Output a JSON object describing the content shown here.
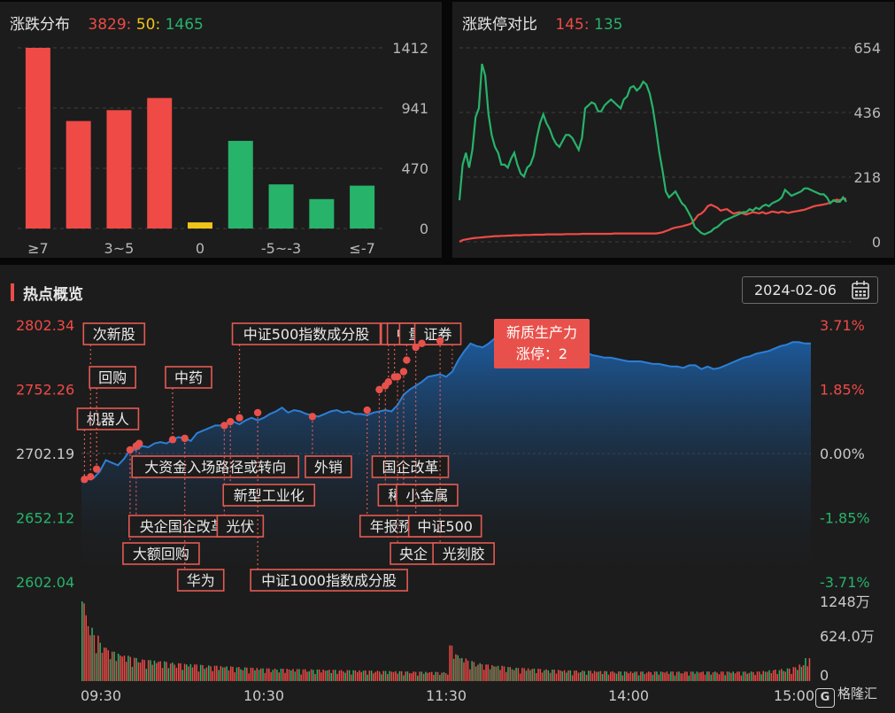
{
  "distribution": {
    "title": "涨跌分布",
    "up_count": "3829",
    "flat_count": "50",
    "down_count": "1465",
    "sep": ":"
  },
  "limit_compare": {
    "title": "涨跌停对比",
    "up_limit": "145",
    "down_limit": "135",
    "sep": ":"
  },
  "hot": {
    "title": "热点概览",
    "date": "2024-02-06",
    "tooltip": {
      "title": "新质生产力",
      "label": "涨停：2"
    }
  },
  "logo": {
    "mark": "G",
    "text": "格隆汇"
  },
  "colors": {
    "up": "#ef4a46",
    "down": "#27b36a",
    "flat": "#f0c419",
    "area": "#1f6fc0"
  },
  "chart_data": [
    {
      "id": "dist",
      "type": "bar",
      "categories": [
        "≥7",
        "",
        "3~5",
        "",
        "0",
        "",
        "-5~-3",
        "",
        "≤-7"
      ],
      "category_labels": [
        "≥7",
        "3~5",
        "0",
        "-5~-3",
        "≤-7"
      ],
      "values": [
        1412,
        840,
        925,
        1020,
        48,
        685,
        345,
        230,
        335
      ],
      "bar_colors": [
        "up",
        "up",
        "up",
        "up",
        "flat",
        "down",
        "down",
        "down",
        "down"
      ],
      "y_ticks": [
        "1412",
        "941",
        "470",
        "0"
      ],
      "ylim": [
        0,
        1412
      ]
    },
    {
      "id": "limit",
      "type": "line",
      "y_ticks": [
        "654",
        "436",
        "218",
        "0"
      ],
      "ylim": [
        0,
        654
      ],
      "x": [
        0,
        2,
        4,
        6,
        8,
        10,
        12,
        14,
        16,
        18,
        20,
        22,
        24,
        26,
        28,
        30,
        32,
        34,
        36,
        38,
        40,
        42,
        44,
        46,
        48,
        50,
        52,
        54,
        56,
        58,
        60,
        62,
        64,
        66,
        68,
        70,
        72,
        74,
        76,
        78,
        80,
        82,
        84,
        86,
        88,
        90,
        92,
        94,
        96,
        98,
        100,
        102,
        104,
        106,
        108,
        110,
        112,
        114,
        116,
        118,
        120,
        122,
        124,
        126,
        128,
        130,
        132,
        134,
        136,
        138,
        140,
        142,
        144,
        146,
        148,
        150,
        152,
        154,
        156,
        158,
        160,
        162,
        164,
        166,
        168,
        170,
        172,
        174,
        176,
        178,
        180,
        182,
        184,
        186,
        188,
        190,
        192,
        194,
        196,
        198,
        200,
        202,
        204,
        206,
        208,
        210,
        212,
        214,
        216,
        218,
        220,
        222,
        224,
        226,
        228,
        230,
        232,
        234,
        236,
        238,
        240
      ],
      "series": [
        {
          "name": "",
          "color": "up",
          "values": [
            0,
            6,
            8,
            10,
            12,
            13,
            14,
            15,
            16,
            17,
            18,
            19,
            19,
            20,
            20,
            21,
            21,
            22,
            22,
            22,
            23,
            23,
            23,
            24,
            24,
            24,
            24,
            25,
            25,
            25,
            25,
            25,
            25,
            26,
            26,
            26,
            26,
            26,
            27,
            27,
            27,
            27,
            27,
            27,
            27,
            27,
            27,
            27,
            28,
            28,
            28,
            28,
            28,
            28,
            28,
            28,
            28,
            28,
            28,
            28,
            28,
            28,
            30,
            32,
            36,
            40,
            45,
            48,
            50,
            52,
            55,
            58,
            62,
            75,
            90,
            95,
            105,
            120,
            125,
            120,
            115,
            105,
            108,
            110,
            102,
            95,
            98,
            100,
            95,
            92,
            96,
            100,
            98,
            96,
            100,
            95,
            98,
            102,
            100,
            98,
            102,
            100,
            97,
            100,
            102,
            104,
            106,
            108,
            112,
            116,
            120,
            122,
            124,
            126,
            128,
            132,
            138,
            142,
            140,
            145,
            145
          ]
        },
        {
          "name": "",
          "color": "down",
          "values": [
            140,
            260,
            300,
            250,
            310,
            420,
            450,
            600,
            560,
            430,
            360,
            320,
            300,
            260,
            260,
            250,
            280,
            300,
            260,
            230,
            220,
            250,
            260,
            290,
            350,
            400,
            430,
            400,
            380,
            350,
            330,
            320,
            340,
            360,
            360,
            350,
            330,
            310,
            350,
            450,
            460,
            470,
            465,
            440,
            440,
            460,
            470,
            480,
            470,
            460,
            450,
            480,
            490,
            520,
            525,
            510,
            520,
            540,
            530,
            500,
            450,
            380,
            300,
            240,
            170,
            150,
            160,
            170,
            150,
            130,
            120,
            100,
            80,
            50,
            40,
            30,
            25,
            30,
            35,
            45,
            50,
            60,
            70,
            75,
            80,
            85,
            90,
            95,
            100,
            100,
            110,
            105,
            115,
            110,
            120,
            125,
            120,
            130,
            135,
            140,
            150,
            175,
            165,
            155,
            160,
            165,
            170,
            180,
            180,
            175,
            170,
            165,
            160,
            160,
            150,
            130,
            140,
            135,
            135,
            150,
            135
          ]
        }
      ]
    },
    {
      "id": "hot",
      "type": "area",
      "y_ticks_left": [
        "2802.34",
        "2752.26",
        "2702.19",
        "2652.12",
        "2602.04"
      ],
      "y_ticks_right": [
        "3.71%",
        "1.85%",
        "0.00%",
        "-1.85%",
        "-3.71%"
      ],
      "ylim": [
        2602.04,
        2802.34
      ],
      "x_ticks": [
        "09:30",
        "10:30",
        "11:30",
        "14:00",
        "15:00"
      ],
      "volume_ticks": [
        "1248万",
        "624.0万",
        "0"
      ],
      "volume_max": 1248,
      "x": [
        0,
        2,
        4,
        6,
        8,
        10,
        12,
        14,
        16,
        18,
        20,
        22,
        24,
        26,
        28,
        30,
        32,
        34,
        36,
        38,
        40,
        42,
        44,
        46,
        48,
        50,
        52,
        54,
        56,
        58,
        60,
        62,
        64,
        66,
        68,
        70,
        72,
        74,
        76,
        78,
        80,
        82,
        84,
        86,
        88,
        90,
        92,
        94,
        96,
        98,
        100,
        102,
        104,
        106,
        108,
        110,
        112,
        114,
        116,
        118,
        120,
        122,
        124,
        126,
        128,
        130,
        132,
        134,
        136,
        138,
        140,
        142,
        144,
        146,
        148,
        150,
        152,
        154,
        156,
        158,
        160,
        162,
        164,
        166,
        168,
        170,
        172,
        174,
        176,
        178,
        180,
        182,
        184,
        186,
        188,
        190,
        192,
        194,
        196,
        198,
        200,
        202,
        204,
        206,
        208,
        210,
        212,
        214,
        216,
        218,
        220,
        222,
        224,
        226,
        228,
        230,
        232,
        234,
        236,
        238,
        240
      ],
      "values": [
        2680,
        2683,
        2683,
        2688,
        2697,
        2695,
        2693,
        2698,
        2705,
        2705,
        2708,
        2707,
        2710,
        2711,
        2710,
        2713,
        2715,
        2714,
        2712,
        2718,
        2720,
        2722,
        2724,
        2724,
        2726,
        2727,
        2725,
        2728,
        2730,
        2728,
        2730,
        2733,
        2735,
        2738,
        2734,
        2736,
        2735,
        2733,
        2732,
        2731,
        2733,
        2735,
        2736,
        2734,
        2735,
        2733,
        2733,
        2732,
        2734,
        2735,
        2736,
        2735,
        2740,
        2748,
        2752,
        2755,
        2758,
        2762,
        2763,
        2764,
        2762,
        2766,
        2775,
        2782,
        2788,
        2786,
        2785,
        2788,
        2792,
        2794,
        2790,
        2790,
        2788,
        2790,
        2789,
        2790,
        2790,
        2788,
        2786,
        2785,
        2783,
        2784,
        2780,
        2781,
        2779,
        2778,
        2777,
        2777,
        2776,
        2775,
        2774,
        2774,
        2774,
        2773,
        2772,
        2772,
        2771,
        2770,
        2770,
        2769,
        2771,
        2771,
        2768,
        2770,
        2768,
        2769,
        2771,
        2773,
        2775,
        2777,
        2778,
        2780,
        2781,
        2782,
        2784,
        2786,
        2787,
        2789,
        2789,
        2788,
        2788
      ],
      "volume": [
        1248,
        860,
        720,
        600,
        520,
        460,
        430,
        400,
        380,
        360,
        340,
        330,
        320,
        310,
        300,
        290,
        280,
        270,
        265,
        260,
        250,
        245,
        240,
        235,
        230,
        225,
        220,
        215,
        210,
        205,
        200,
        198,
        196,
        194,
        192,
        190,
        188,
        186,
        184,
        182,
        180,
        178,
        176,
        174,
        172,
        170,
        168,
        166,
        164,
        162,
        160,
        158,
        156,
        154,
        152,
        150,
        148,
        146,
        144,
        142,
        140,
        560,
        420,
        360,
        320,
        300,
        280,
        260,
        250,
        240,
        230,
        220,
        210,
        205,
        200,
        195,
        190,
        185,
        180,
        175,
        170,
        168,
        166,
        164,
        162,
        160,
        158,
        156,
        154,
        152,
        150,
        150,
        150,
        150,
        150,
        150,
        150,
        150,
        150,
        150,
        150,
        150,
        150,
        150,
        150,
        150,
        150,
        150,
        150,
        150,
        150,
        150,
        150,
        160,
        170,
        180,
        190,
        200,
        220,
        260,
        360
      ],
      "events": [
        {
          "label": "机器人",
          "x": 1,
          "y": 2682,
          "box": "top",
          "row": 2
        },
        {
          "label": "次新股",
          "x": 3,
          "y": 2684,
          "box": "top",
          "row": 0
        },
        {
          "label": "回购",
          "x": 5,
          "y": 2690,
          "box": "top",
          "row": 1
        },
        {
          "label": "大额回购",
          "x": 16,
          "y": 2705,
          "box": "bottom",
          "row": 3
        },
        {
          "label": "央企国企改革",
          "x": 18,
          "y": 2708,
          "box": "bottom",
          "row": 2
        },
        {
          "label": "大资金入场路径或转向",
          "x": 19,
          "y": 2710,
          "box": "bottom",
          "row": 0
        },
        {
          "label": "中药",
          "x": 30,
          "y": 2713,
          "box": "top",
          "row": 1
        },
        {
          "label": "华为",
          "x": 34,
          "y": 2714,
          "box": "bottom",
          "row": 4
        },
        {
          "label": "光伏",
          "x": 47,
          "y": 2724,
          "box": "bottom",
          "row": 2
        },
        {
          "label": "新型工业化",
          "x": 49,
          "y": 2727,
          "box": "bottom",
          "row": 1
        },
        {
          "label": "中证500指数成分股",
          "x": 52,
          "y": 2730,
          "box": "top",
          "row": 0
        },
        {
          "label": "中证1000指数成分股",
          "x": 58,
          "y": 2734,
          "box": "bottom",
          "row": 4
        },
        {
          "label": "外销",
          "x": 76,
          "y": 2731,
          "box": "bottom",
          "row": 0
        },
        {
          "label": "年报预增",
          "x": 94,
          "y": 2736,
          "box": "bottom",
          "row": 2
        },
        {
          "label": "国企改革",
          "x": 98,
          "y": 2752,
          "box": "bottom",
          "row": 0
        },
        {
          "label": "稀土永磁",
          "x": 100,
          "y": 2755,
          "box": "bottom",
          "row": 1
        },
        {
          "label": "消费",
          "x": 101,
          "y": 2758,
          "box": "top",
          "row": 0
        },
        {
          "label": "中国",
          "x": 103,
          "y": 2762,
          "box": "top",
          "row": 0
        },
        {
          "label": "央企",
          "x": 104,
          "y": 2762,
          "box": "bottom",
          "row": 3
        },
        {
          "label": "小金属",
          "x": 106,
          "y": 2766,
          "box": "bottom",
          "row": 1
        },
        {
          "label": "量子",
          "x": 107,
          "y": 2775,
          "box": "top",
          "row": 0
        },
        {
          "label": "中证500",
          "x": 110,
          "y": 2785,
          "box": "bottom",
          "row": 2
        },
        {
          "label": "证券",
          "x": 112,
          "y": 2788,
          "box": "top",
          "row": 0
        },
        {
          "label": "光刻胶",
          "x": 118,
          "y": 2790,
          "box": "bottom",
          "row": 3
        },
        {
          "label": "新质生产力",
          "x": 122,
          "y": 2788,
          "box": "tip",
          "row": 0
        }
      ]
    }
  ]
}
